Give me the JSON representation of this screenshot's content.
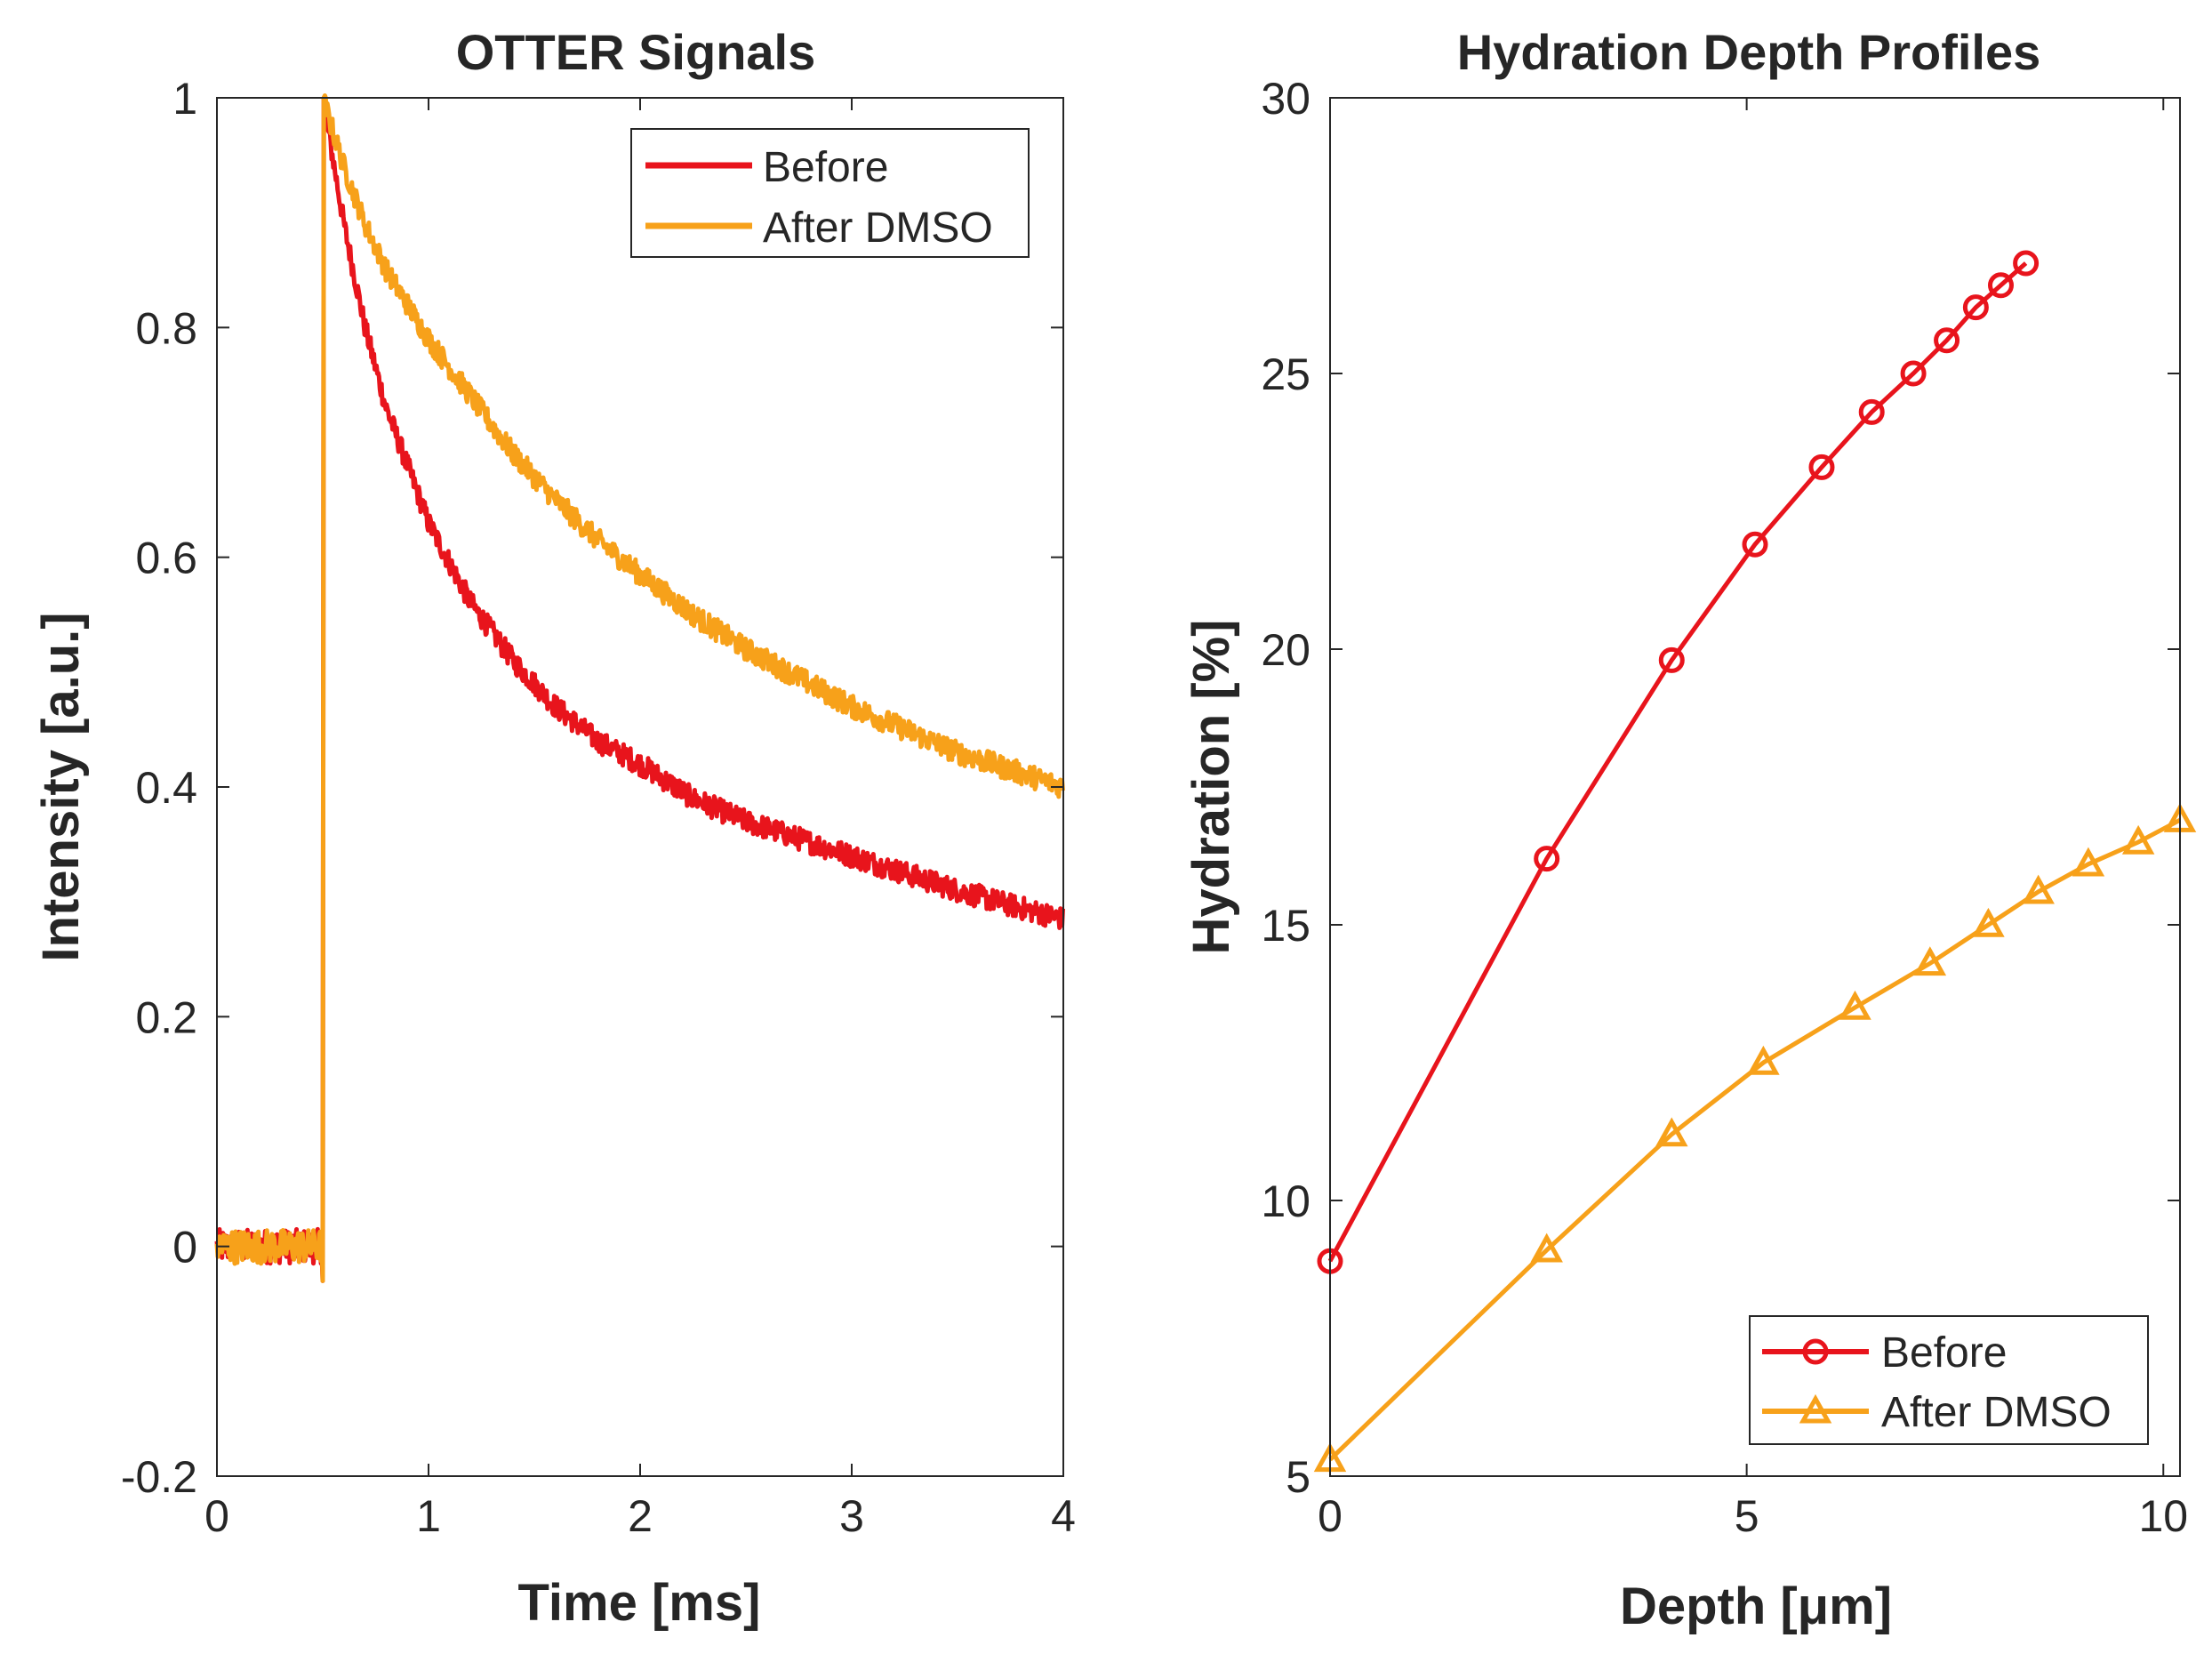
{
  "chart_data": [
    {
      "type": "line",
      "title": "OTTER Signals",
      "xlabel": "Time [ms]",
      "ylabel": "Intensity [a.u.]",
      "xlim": [
        0,
        4
      ],
      "ylim": [
        -0.2,
        1
      ],
      "xticks": [
        0,
        1,
        2,
        3,
        4
      ],
      "yticks": [
        -0.2,
        0,
        0.2,
        0.4,
        0.6,
        0.8,
        1
      ],
      "xtick_labels": [
        "0",
        "1",
        "2",
        "3",
        "4"
      ],
      "ytick_labels": [
        "-0.2",
        "0",
        "0.2",
        "0.4",
        "0.6",
        "0.8",
        "1"
      ],
      "grid": false,
      "legend_position": "top-right",
      "series": [
        {
          "name": "Before",
          "color": "#e8141c",
          "pulse_start_ms": 0.5,
          "pre_pulse_level": 0.0,
          "peak": 1.0,
          "x": [
            0.5,
            0.6,
            0.7,
            0.8,
            0.9,
            1.0,
            1.2,
            1.4,
            1.6,
            1.8,
            2.0,
            2.25,
            2.5,
            2.75,
            3.0,
            3.25,
            3.5,
            3.75,
            4.0
          ],
          "values": [
            1.0,
            0.89,
            0.8,
            0.73,
            0.68,
            0.63,
            0.56,
            0.51,
            0.47,
            0.44,
            0.42,
            0.39,
            0.37,
            0.355,
            0.34,
            0.325,
            0.31,
            0.297,
            0.285
          ]
        },
        {
          "name": "After DMSO",
          "color": "#f7a11a",
          "pulse_start_ms": 0.5,
          "pre_pulse_level": 0.0,
          "peak": 1.0,
          "x": [
            0.5,
            0.6,
            0.7,
            0.8,
            0.9,
            1.0,
            1.2,
            1.4,
            1.6,
            1.8,
            2.0,
            2.25,
            2.5,
            2.75,
            3.0,
            3.25,
            3.5,
            3.75,
            4.0
          ],
          "values": [
            1.0,
            0.94,
            0.89,
            0.85,
            0.82,
            0.79,
            0.74,
            0.69,
            0.65,
            0.615,
            0.585,
            0.55,
            0.52,
            0.495,
            0.47,
            0.45,
            0.43,
            0.415,
            0.4
          ]
        }
      ]
    },
    {
      "type": "line",
      "title": "Hydration Depth Profiles",
      "xlabel": "Depth  [μm]",
      "ylabel": "Hydration [%]",
      "xlim": [
        0,
        10.2
      ],
      "ylim": [
        5,
        30
      ],
      "xticks": [
        0,
        5,
        10
      ],
      "yticks": [
        5,
        10,
        15,
        20,
        25,
        30
      ],
      "xtick_labels": [
        "0",
        "5",
        "10"
      ],
      "ytick_labels": [
        "5",
        "10",
        "15",
        "20",
        "25",
        "30"
      ],
      "grid": false,
      "legend_position": "bottom-right",
      "series": [
        {
          "name": "Before",
          "color": "#e8141c",
          "marker": "circle",
          "x": [
            0.0,
            2.6,
            4.1,
            5.1,
            5.9,
            6.5,
            7.0,
            7.4,
            7.75,
            8.05,
            8.35
          ],
          "values": [
            8.9,
            16.2,
            19.8,
            21.9,
            23.3,
            24.3,
            25.0,
            25.6,
            26.2,
            26.6,
            27.0
          ]
        },
        {
          "name": "After DMSO",
          "color": "#f7a11a",
          "marker": "triangle",
          "x": [
            0.0,
            2.6,
            4.1,
            5.2,
            6.3,
            7.2,
            7.9,
            8.5,
            9.1,
            9.7,
            10.2
          ],
          "values": [
            5.3,
            9.1,
            11.2,
            12.5,
            13.5,
            14.3,
            15.0,
            15.6,
            16.1,
            16.5,
            16.9
          ]
        }
      ]
    }
  ]
}
